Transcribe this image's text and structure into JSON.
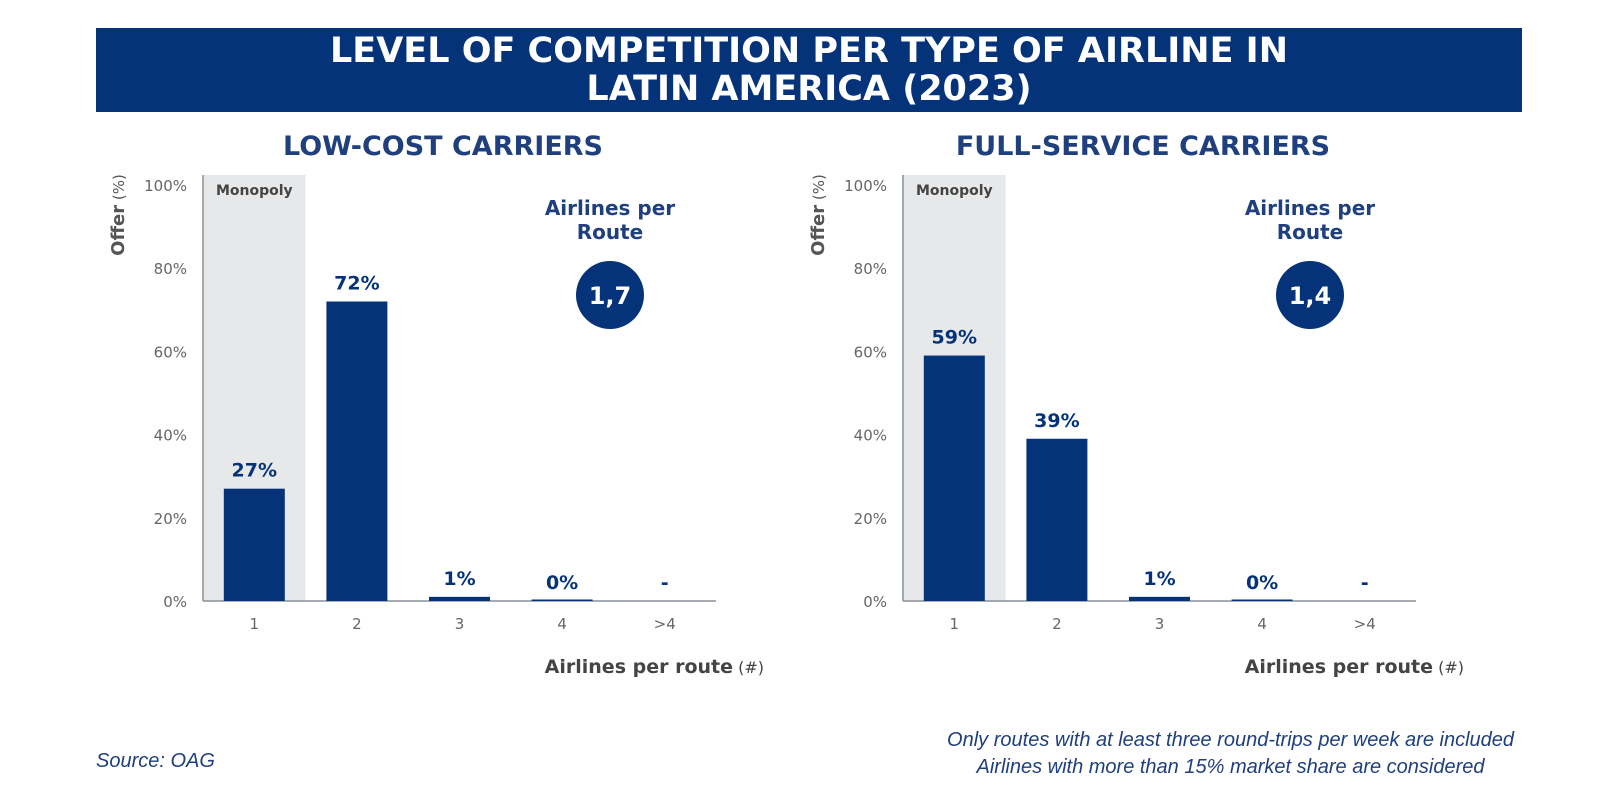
{
  "title": {
    "line1": "LEVEL OF COMPETITION PER TYPE OF AIRLINE IN",
    "line2": "LATIN AMERICA (2023)"
  },
  "footer": {
    "source": "Source: OAG",
    "note1": "Only routes with at least three round-trips per week are included",
    "note2": "Airlines with more than 15% market share are considered"
  },
  "colors": {
    "bar": "#05337a",
    "monopoly_band": "#e7e8ea",
    "axis": "#8a8f98",
    "value_label": "#05337a",
    "banner": "#05337a"
  },
  "chart_data": [
    {
      "type": "bar",
      "title": "LOW-COST CARRIERS",
      "ylabel": "Offer",
      "ylabel_unit": "(%)",
      "xlabel": "Airlines per route",
      "xlabel_unit": "(#)",
      "ylim": [
        0,
        100
      ],
      "yticks": [
        "0%",
        "20%",
        "40%",
        "60%",
        "80%",
        "100%"
      ],
      "categories": [
        "1",
        "2",
        "3",
        "4",
        ">4"
      ],
      "values": [
        27,
        72,
        1,
        0,
        null
      ],
      "value_labels": [
        "27%",
        "72%",
        "1%",
        "0%",
        "-"
      ],
      "highlight_band": {
        "label": "Monopoly",
        "category": "1"
      },
      "kpi": {
        "label_line1": "Airlines per",
        "label_line2": "Route",
        "value": "1,7"
      }
    },
    {
      "type": "bar",
      "title": "FULL-SERVICE CARRIERS",
      "ylabel": "Offer",
      "ylabel_unit": "(%)",
      "xlabel": "Airlines per route",
      "xlabel_unit": "(#)",
      "ylim": [
        0,
        100
      ],
      "yticks": [
        "0%",
        "20%",
        "40%",
        "60%",
        "80%",
        "100%"
      ],
      "categories": [
        "1",
        "2",
        "3",
        "4",
        ">4"
      ],
      "values": [
        59,
        39,
        1,
        0,
        null
      ],
      "value_labels": [
        "59%",
        "39%",
        "1%",
        "0%",
        "-"
      ],
      "highlight_band": {
        "label": "Monopoly",
        "category": "1"
      },
      "kpi": {
        "label_line1": "Airlines per",
        "label_line2": "Route",
        "value": "1,4"
      }
    }
  ]
}
